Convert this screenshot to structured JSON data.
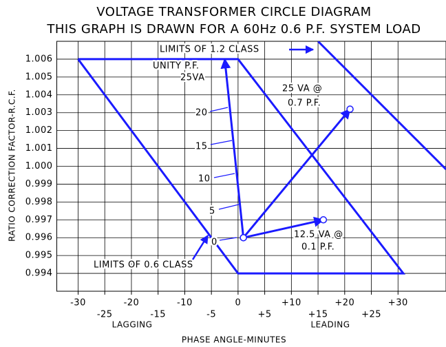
{
  "chart_data": {
    "type": "line",
    "title": "VOLTAGE TRANSFORMER CIRCLE DIAGRAM",
    "subtitle": "THIS GRAPH IS DRAWN FOR A 60Hz 0.6 P.F. SYSTEM LOAD",
    "xlabel": "PHASE ANGLE-MINUTES",
    "ylabel": "RATIO CORRECTION FACTOR-R.C.F.",
    "xlim": [
      -34,
      39
    ],
    "ylim": [
      0.993,
      1.007
    ],
    "xticks": [
      -30,
      -25,
      -20,
      -15,
      -10,
      -5,
      0,
      {
        "value": 5,
        "label": "+5"
      },
      {
        "value": 10,
        "label": "+10"
      },
      {
        "value": 15,
        "label": "+15"
      },
      {
        "value": 20,
        "label": "+20"
      },
      {
        "value": 25,
        "label": "+25"
      },
      {
        "value": 30,
        "label": "+30"
      }
    ],
    "yticks": [
      0.994,
      0.995,
      0.996,
      0.997,
      0.998,
      0.999,
      {
        "value": 1,
        "label": "1.000"
      },
      1.001,
      1.002,
      1.003,
      1.004,
      1.005,
      1.006
    ],
    "grid": true,
    "side_labels": [
      "LAGGING",
      "LEADING"
    ],
    "series": [
      {
        "color": "#1a1aff",
        "x": [
          -30,
          0,
          31,
          0,
          -30
        ],
        "values": [
          1.006,
          1.006,
          0.994,
          0.994,
          1.006
        ]
      },
      {
        "color": "#1a1aff",
        "x": [
          15,
          39
        ],
        "values": [
          1.007,
          0.99983
        ]
      },
      {
        "color": "#1a1aff",
        "x": [
          1,
          -2.5
        ],
        "values": [
          0.996,
          1.006
        ],
        "arrow": true
      },
      {
        "color": "#1a1aff",
        "x": [
          1,
          21
        ],
        "values": [
          0.996,
          1.0032
        ],
        "arrow": true,
        "marker": "circle"
      },
      {
        "color": "#1a1aff",
        "x": [
          1,
          16
        ],
        "values": [
          0.996,
          0.997
        ],
        "arrow": true,
        "marker": "circle"
      }
    ],
    "annotations": [
      "LIMITS OF 1.2 CLASS",
      "UNITY P.F.",
      "25VA",
      "20",
      "15",
      "10",
      "5",
      "0",
      "25 VA @",
      "0.7 P.F.",
      "12.5 VA @",
      "0.1 P.F.",
      "LIMITS OF 0.6 CLASS"
    ]
  }
}
